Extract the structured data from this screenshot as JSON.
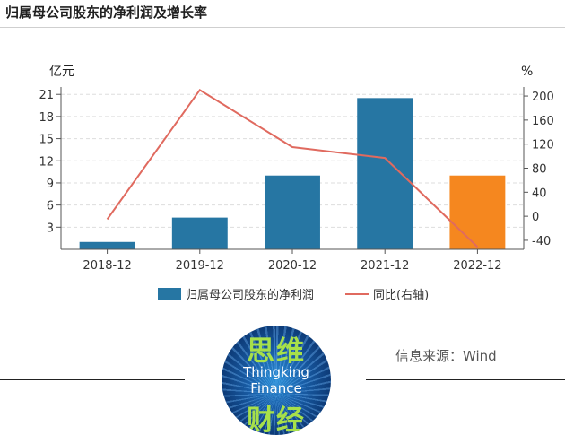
{
  "title": "归属母公司股东的净利润及增长率",
  "source": "信息来源：Wind",
  "logo": {
    "top_text": "思维",
    "en_line1": "Thingking",
    "en_line2": "Finance",
    "bottom_text": "财经"
  },
  "colors": {
    "bar": "#2676a3",
    "bar_highlight": "#f5871f",
    "line": "#e06a5f",
    "grid": "#dddddd"
  },
  "chart_data": {
    "type": "bar",
    "categories": [
      "2018-12",
      "2019-12",
      "2020-12",
      "2021-12",
      "2022-12"
    ],
    "series": [
      {
        "name": "归属母公司股东的净利润",
        "type": "bar",
        "axis": "left",
        "values": [
          1.0,
          4.3,
          10.0,
          20.5,
          10.0
        ]
      },
      {
        "name": "同比(右轴)",
        "type": "line",
        "axis": "right",
        "values": [
          -5,
          210,
          115,
          97,
          -51
        ]
      }
    ],
    "highlight_index": 4,
    "y_left": {
      "unit": "亿元",
      "ticks": [
        3,
        6,
        9,
        12,
        15,
        18,
        21
      ],
      "range": [
        0,
        22
      ]
    },
    "y_right": {
      "unit": "%",
      "ticks": [
        -40,
        0,
        40,
        80,
        120,
        160,
        200
      ],
      "range": [
        -55,
        215
      ]
    },
    "grid": true,
    "legend": "bottom"
  }
}
